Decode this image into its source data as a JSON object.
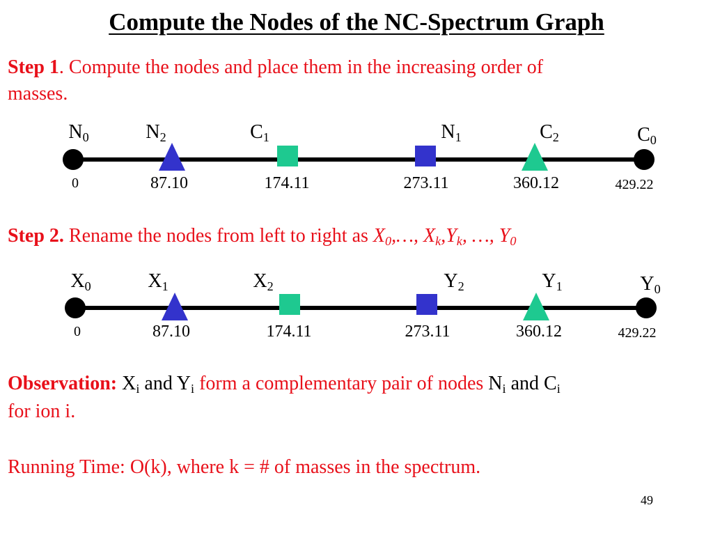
{
  "title": "Compute the Nodes of the NC-Spectrum Graph",
  "step1": {
    "label": "Step 1",
    "text_line1": ". Compute the nodes and place them in the increasing order of",
    "text_line2": "masses."
  },
  "step2": {
    "label": "Step 2.",
    "text": " Rename the nodes from left to right as ",
    "formula": {
      "x": "X",
      "zero": "0",
      "dots1": ",…, ",
      "k": "k",
      "comma": ",",
      "y": "Y",
      "dots2": ", …, "
    }
  },
  "diagram1": {
    "labels": [
      {
        "base": "N",
        "sub": "0"
      },
      {
        "base": "N",
        "sub": "2"
      },
      {
        "base": "C",
        "sub": "1"
      },
      {
        "base": "N",
        "sub": "1"
      },
      {
        "base": "C",
        "sub": "2"
      },
      {
        "base": "C",
        "sub": "0"
      }
    ],
    "values": [
      "0",
      "87.10",
      "174.11",
      "273.11",
      "360.12",
      "429.22"
    ]
  },
  "diagram2": {
    "labels": [
      {
        "base": "X",
        "sub": "0"
      },
      {
        "base": "X",
        "sub": "1"
      },
      {
        "base": "X",
        "sub": "2"
      },
      {
        "base": "Y",
        "sub": "2"
      },
      {
        "base": "Y",
        "sub": "1"
      },
      {
        "base": "Y",
        "sub": "0"
      }
    ],
    "values": [
      "0",
      "87.10",
      "174.11",
      "273.11",
      "360.12",
      "429.22"
    ]
  },
  "colors": {
    "red": "#e8101a",
    "blue": "#3333cc",
    "green": "#1ec990",
    "black": "#000000"
  },
  "observation": {
    "label": "Observation:",
    "x": "X",
    "i": "i",
    "and": " and ",
    "y": "Y",
    "text": " form a complementary pair of nodes ",
    "n": "N",
    "and2": " and ",
    "c": "C",
    "line2": "for ion i."
  },
  "running_time": "Running Time: O(k), where k = # of masses in the spectrum.",
  "page_number": "49"
}
